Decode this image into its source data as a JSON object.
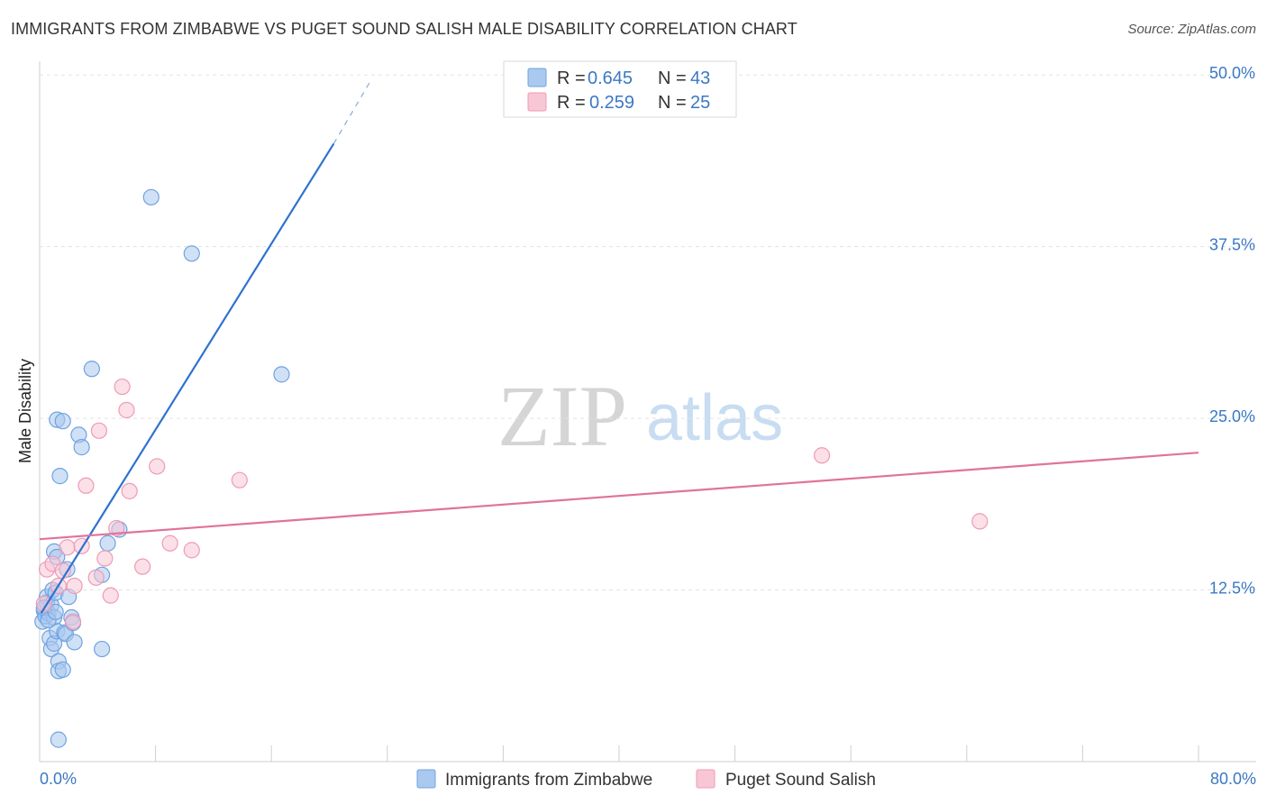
{
  "chart_data": {
    "type": "scatter",
    "title": "IMMIGRANTS FROM ZIMBABWE VS PUGET SOUND SALISH MALE DISABILITY CORRELATION CHART",
    "source": "Source: ZipAtlas.com",
    "ylabel": "Male Disability",
    "xlim": [
      0,
      80
    ],
    "ylim": [
      0,
      51
    ],
    "x_tick_labels": [
      "0.0%",
      "80.0%"
    ],
    "y_ticks": [
      12.5,
      25.0,
      37.5,
      50.0
    ],
    "y_tick_labels": [
      "12.5%",
      "25.0%",
      "37.5%",
      "50.0%"
    ],
    "watermark": {
      "zip": "ZIP",
      "atlas": "atlas"
    },
    "legend": [
      {
        "r_label": "R =",
        "r_value": "0.645",
        "n_label": "N =",
        "n_value": "43"
      },
      {
        "r_label": "R =",
        "r_value": "0.259",
        "n_label": "N =",
        "n_value": "25"
      }
    ],
    "series": [
      {
        "name": "Immigrants from Zimbabwe",
        "color": "#6fa3e0",
        "fill": "#aac9ef",
        "line_color": "#2f72cf",
        "trend": {
          "x0": 0.1,
          "y0": 10.8,
          "x1": 20.3,
          "y1": 45.0,
          "dash_x1": 22.8,
          "dash_y1": 49.5
        },
        "points": [
          [
            0.2,
            10.2
          ],
          [
            0.3,
            11.0
          ],
          [
            0.4,
            10.6
          ],
          [
            0.5,
            11.6
          ],
          [
            0.5,
            12.0
          ],
          [
            0.6,
            10.8
          ],
          [
            0.7,
            9.0
          ],
          [
            0.8,
            11.4
          ],
          [
            0.8,
            8.2
          ],
          [
            0.9,
            12.5
          ],
          [
            1.0,
            10.5
          ],
          [
            1.0,
            8.6
          ],
          [
            1.0,
            15.3
          ],
          [
            1.1,
            12.3
          ],
          [
            1.2,
            9.5
          ],
          [
            1.2,
            24.9
          ],
          [
            1.2,
            14.9
          ],
          [
            1.3,
            7.3
          ],
          [
            1.3,
            6.6
          ],
          [
            1.3,
            1.6
          ],
          [
            1.4,
            20.8
          ],
          [
            1.6,
            24.8
          ],
          [
            1.6,
            6.7
          ],
          [
            1.7,
            9.4
          ],
          [
            1.8,
            9.3
          ],
          [
            1.9,
            14.0
          ],
          [
            2.0,
            12.0
          ],
          [
            2.2,
            10.5
          ],
          [
            2.3,
            10.1
          ],
          [
            2.4,
            8.7
          ],
          [
            2.7,
            23.8
          ],
          [
            2.9,
            22.9
          ],
          [
            3.6,
            28.6
          ],
          [
            4.3,
            8.2
          ],
          [
            4.3,
            13.6
          ],
          [
            4.7,
            15.9
          ],
          [
            5.5,
            16.9
          ],
          [
            7.7,
            41.1
          ],
          [
            10.5,
            37.0
          ],
          [
            16.7,
            28.2
          ],
          [
            0.3,
            11.2
          ],
          [
            0.6,
            10.3
          ],
          [
            1.1,
            10.9
          ]
        ]
      },
      {
        "name": "Puget Sound Salish",
        "color": "#f09ab5",
        "fill": "#f8c7d6",
        "line_color": "#e0739a",
        "trend": {
          "x0": 0,
          "y0": 16.2,
          "x1": 80,
          "y1": 22.5
        },
        "points": [
          [
            0.3,
            11.5
          ],
          [
            0.5,
            14.0
          ],
          [
            0.9,
            14.4
          ],
          [
            1.3,
            12.8
          ],
          [
            1.6,
            13.9
          ],
          [
            1.9,
            15.6
          ],
          [
            2.3,
            10.2
          ],
          [
            2.4,
            12.8
          ],
          [
            2.9,
            15.7
          ],
          [
            3.2,
            20.1
          ],
          [
            3.9,
            13.4
          ],
          [
            4.1,
            24.1
          ],
          [
            4.5,
            14.8
          ],
          [
            4.9,
            12.1
          ],
          [
            5.3,
            17.0
          ],
          [
            5.7,
            27.3
          ],
          [
            6.0,
            25.6
          ],
          [
            6.2,
            19.7
          ],
          [
            7.1,
            14.2
          ],
          [
            8.1,
            21.5
          ],
          [
            9.0,
            15.9
          ],
          [
            10.5,
            15.4
          ],
          [
            13.8,
            20.5
          ],
          [
            54.0,
            22.3
          ],
          [
            64.9,
            17.5
          ]
        ]
      }
    ]
  }
}
